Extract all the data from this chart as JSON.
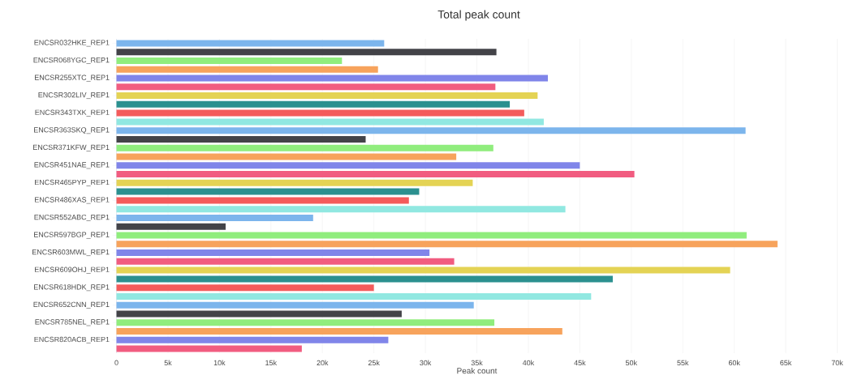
{
  "chart_data": {
    "type": "bar",
    "orientation": "horizontal",
    "title": "Total peak count",
    "xlabel": "Peak count",
    "categories": [
      "ENCSR032HKE_REP1",
      null,
      "ENCSR068YGC_REP1",
      null,
      "ENCSR255XTC_REP1",
      null,
      "ENCSR302LIV_REP1",
      null,
      "ENCSR343TXK_REP1",
      null,
      "ENCSR363SKQ_REP1",
      null,
      "ENCSR371KFW_REP1",
      null,
      "ENCSR451NAE_REP1",
      null,
      "ENCSR465PYP_REP1",
      null,
      "ENCSR486XAS_REP1",
      null,
      "ENCSR552ABC_REP1",
      null,
      "ENCSR597BGP_REP1",
      null,
      "ENCSR603MWL_REP1",
      null,
      "ENCSR609OHJ_REP1",
      null,
      "ENCSR618HDK_REP1",
      null,
      "ENCSR652CNN_REP1",
      null,
      "ENCSR785NEL_REP1",
      null,
      "ENCSR820ACB_REP1",
      null
    ],
    "values": [
      26000,
      36900,
      21900,
      25400,
      41900,
      36800,
      40900,
      38200,
      39600,
      41500,
      61100,
      24200,
      36600,
      33000,
      45000,
      50300,
      34600,
      29400,
      28400,
      43600,
      19100,
      10600,
      61200,
      64200,
      30400,
      32800,
      59600,
      48200,
      25000,
      46100,
      34700,
      27700,
      36700,
      43300,
      26400,
      18000
    ],
    "colors": [
      "#7cb5ec",
      "#434348",
      "#90ed7d",
      "#f7a35c",
      "#8085e9",
      "#f15c80",
      "#e4d354",
      "#2b908f",
      "#f45b5b",
      "#91e8e1",
      "#7cb5ec",
      "#434348",
      "#90ed7d",
      "#f7a35c",
      "#8085e9",
      "#f15c80",
      "#e4d354",
      "#2b908f",
      "#f45b5b",
      "#91e8e1",
      "#7cb5ec",
      "#434348",
      "#90ed7d",
      "#f7a35c",
      "#8085e9",
      "#f15c80",
      "#e4d354",
      "#2b908f",
      "#f45b5b",
      "#91e8e1",
      "#7cb5ec",
      "#434348",
      "#90ed7d",
      "#f7a35c",
      "#8085e9",
      "#f15c80"
    ],
    "xlim": [
      0,
      70000
    ],
    "xticks": [
      0,
      {
        "value": 5000,
        "label": "5k"
      },
      {
        "value": 10000,
        "label": "10k"
      },
      {
        "value": 15000,
        "label": "15k"
      },
      {
        "value": 20000,
        "label": "20k"
      },
      {
        "value": 25000,
        "label": "25k"
      },
      {
        "value": 30000,
        "label": "30k"
      },
      {
        "value": 35000,
        "label": "35k"
      },
      {
        "value": 40000,
        "label": "40k"
      },
      {
        "value": 45000,
        "label": "45k"
      },
      {
        "value": 50000,
        "label": "50k"
      },
      {
        "value": 55000,
        "label": "55k"
      },
      {
        "value": 60000,
        "label": "60k"
      },
      {
        "value": 65000,
        "label": "65k"
      },
      {
        "value": 70000,
        "label": "70k"
      }
    ],
    "grid": "x"
  }
}
